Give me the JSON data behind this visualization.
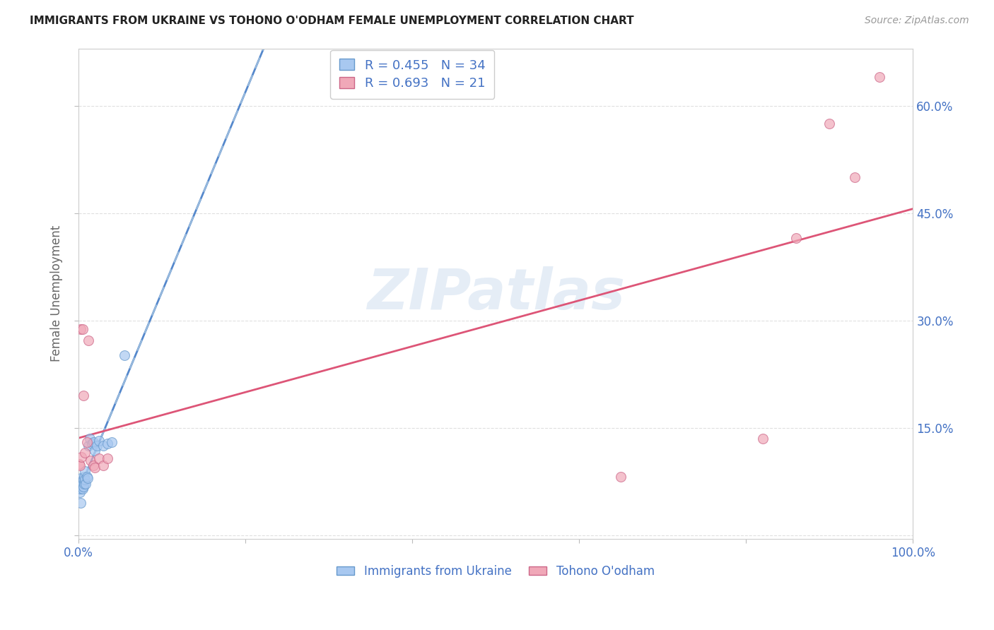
{
  "title": "IMMIGRANTS FROM UKRAINE VS TOHONO O'ODHAM FEMALE UNEMPLOYMENT CORRELATION CHART",
  "source": "Source: ZipAtlas.com",
  "ylabel": "Female Unemployment",
  "xlim": [
    0.0,
    1.0
  ],
  "ylim": [
    -0.005,
    0.68
  ],
  "yticks": [
    0.0,
    0.15,
    0.3,
    0.45,
    0.6
  ],
  "ytick_labels": [
    "",
    "15.0%",
    "30.0%",
    "45.0%",
    "60.0%"
  ],
  "xticks": [
    0.0,
    0.2,
    0.4,
    0.6,
    0.8,
    1.0
  ],
  "xtick_labels": [
    "0.0%",
    "",
    "",
    "",
    "",
    "100.0%"
  ],
  "legend_label_1": "Immigrants from Ukraine",
  "legend_label_2": "Tohono O'odham",
  "ukraine_color": "#a8c8f0",
  "ukraine_edge_color": "#6699cc",
  "tohono_color": "#f0a8b8",
  "tohono_edge_color": "#cc6688",
  "ukraine_line_color": "#5588cc",
  "ukraine_dash_color": "#99bbdd",
  "tohono_line_color": "#dd5577",
  "tick_color": "#4472c4",
  "watermark_color": "#d0dff0",
  "ukraine_x": [
    0.001,
    0.001,
    0.002,
    0.002,
    0.002,
    0.003,
    0.003,
    0.003,
    0.004,
    0.004,
    0.005,
    0.005,
    0.005,
    0.006,
    0.006,
    0.007,
    0.007,
    0.008,
    0.008,
    0.009,
    0.01,
    0.011,
    0.012,
    0.014,
    0.016,
    0.018,
    0.02,
    0.022,
    0.025,
    0.03,
    0.035,
    0.04,
    0.055,
    0.003
  ],
  "ukraine_y": [
    0.065,
    0.07,
    0.068,
    0.072,
    0.06,
    0.075,
    0.065,
    0.08,
    0.07,
    0.075,
    0.068,
    0.072,
    0.065,
    0.078,
    0.068,
    0.082,
    0.072,
    0.078,
    0.09,
    0.072,
    0.082,
    0.08,
    0.125,
    0.135,
    0.128,
    0.13,
    0.118,
    0.125,
    0.132,
    0.125,
    0.128,
    0.13,
    0.252,
    0.045
  ],
  "tohono_x": [
    0.001,
    0.002,
    0.003,
    0.004,
    0.005,
    0.006,
    0.008,
    0.01,
    0.012,
    0.015,
    0.018,
    0.02,
    0.025,
    0.03,
    0.035,
    0.65,
    0.82,
    0.86,
    0.9,
    0.93,
    0.96
  ],
  "tohono_y": [
    0.1,
    0.098,
    0.288,
    0.11,
    0.288,
    0.195,
    0.115,
    0.13,
    0.272,
    0.105,
    0.098,
    0.095,
    0.108,
    0.098,
    0.108,
    0.082,
    0.135,
    0.415,
    0.575,
    0.5,
    0.64
  ],
  "ukraine_r": 0.455,
  "tohono_r": 0.693,
  "ukraine_n": 34,
  "tohono_n": 21,
  "background_color": "#ffffff",
  "grid_color": "#e0e0e0"
}
